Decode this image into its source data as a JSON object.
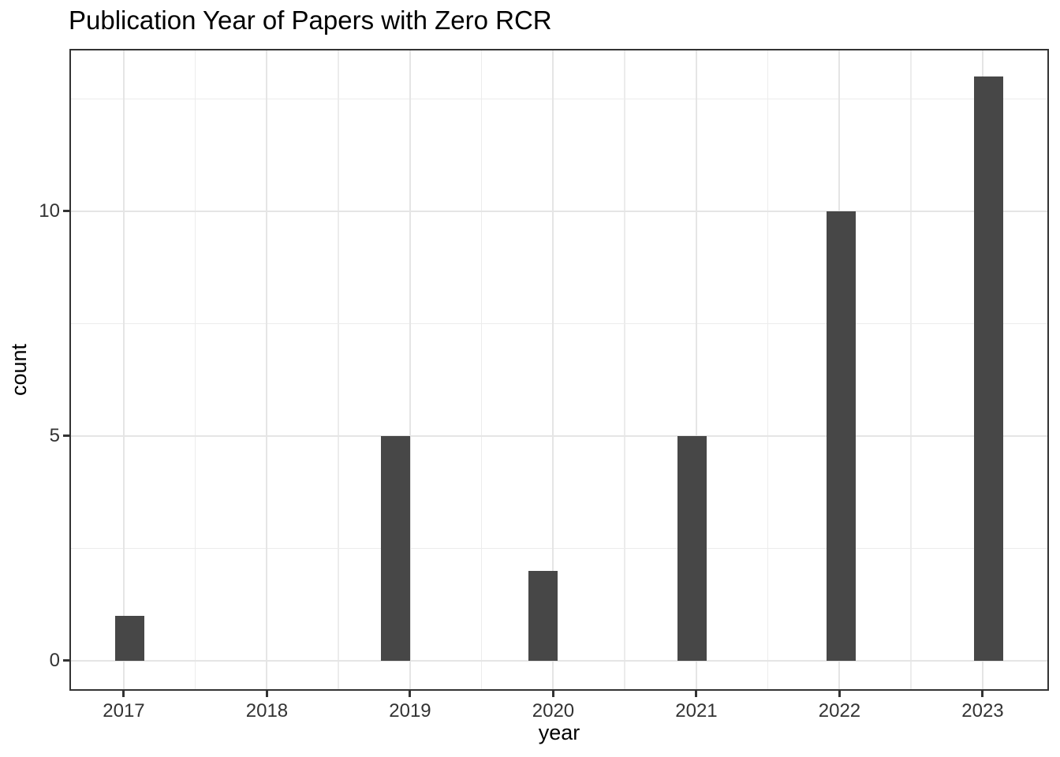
{
  "chart_data": {
    "type": "bar",
    "title": "Publication Year of Papers with Zero RCR",
    "xlabel": "year",
    "ylabel": "count",
    "categories": [
      2017,
      2018,
      2019,
      2020,
      2021,
      2022,
      2023
    ],
    "values": [
      1,
      0,
      5,
      2,
      5,
      10,
      13
    ],
    "x_ticks": [
      "2017",
      "2018",
      "2019",
      "2020",
      "2021",
      "2022",
      "2023"
    ],
    "x_tick_values": [
      2017,
      2018,
      2019,
      2020,
      2021,
      2022,
      2023
    ],
    "y_ticks": [
      "0",
      "5",
      "10"
    ],
    "y_tick_values": [
      0,
      5,
      10
    ],
    "y_minor": [
      2.5,
      7.5,
      12.5
    ],
    "x_minor": [
      2017.5,
      2018.5,
      2019.5,
      2020.5,
      2021.5,
      2022.5
    ],
    "xlim": [
      2016.62,
      2023.463
    ],
    "ylim": [
      -0.667,
      13.614
    ],
    "grid": true,
    "legend_position": "none",
    "bars": [
      {
        "x": 2017.04,
        "count": 1
      },
      {
        "x": 2018.9,
        "count": 5
      },
      {
        "x": 2019.93,
        "count": 2
      },
      {
        "x": 2020.97,
        "count": 5
      },
      {
        "x": 2022.01,
        "count": 10
      },
      {
        "x": 2023.04,
        "count": 13
      }
    ],
    "bar_width_years": 0.204,
    "colors": {
      "bar_fill": "#474747",
      "panel_border": "#333333",
      "grid_major": "#e5e5e5",
      "grid_minor": "#ececec",
      "tick_mark": "#333333",
      "tick_label": "#333333",
      "title": "#000000",
      "axis_title": "#000000",
      "background": "#ffffff"
    }
  }
}
